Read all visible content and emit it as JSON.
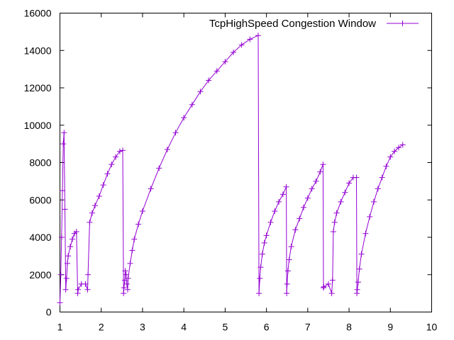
{
  "chart_data": {
    "type": "line",
    "title": "",
    "xlabel": "",
    "ylabel": "",
    "xlim": [
      1,
      10
    ],
    "ylim": [
      0,
      16000
    ],
    "x_ticks": [
      "1",
      "2",
      "3",
      "4",
      "5",
      "6",
      "7",
      "8",
      "9",
      "10"
    ],
    "y_ticks": [
      "0",
      "2000",
      "4000",
      "6000",
      "8000",
      "10000",
      "12000",
      "14000",
      "16000"
    ],
    "grid": false,
    "legend_position": "top-right",
    "marker": "plus",
    "series": [
      {
        "name": "TcpHighSpeed Congestion Window",
        "color": "#9400d3",
        "x": [
          1.0,
          1.02,
          1.04,
          1.06,
          1.08,
          1.1,
          1.12,
          1.14,
          1.16,
          1.18,
          1.2,
          1.25,
          1.3,
          1.35,
          1.4,
          1.43,
          1.44,
          1.52,
          1.62,
          1.67,
          1.68,
          1.72,
          1.78,
          1.85,
          1.95,
          2.05,
          2.15,
          2.25,
          2.35,
          2.45,
          2.52,
          2.54,
          2.55,
          2.57,
          2.58,
          2.6,
          2.62,
          2.64,
          2.65,
          2.7,
          2.75,
          2.8,
          2.9,
          3.0,
          3.2,
          3.4,
          3.6,
          3.8,
          4.0,
          4.2,
          4.4,
          4.6,
          4.8,
          5.0,
          5.2,
          5.4,
          5.6,
          5.8,
          5.82,
          5.84,
          5.86,
          5.9,
          5.95,
          6.0,
          6.1,
          6.2,
          6.3,
          6.4,
          6.48,
          6.49,
          6.5,
          6.52,
          6.55,
          6.6,
          6.7,
          6.8,
          6.9,
          7.0,
          7.1,
          7.2,
          7.3,
          7.37,
          7.38,
          7.39,
          7.5,
          7.58,
          7.6,
          7.62,
          7.65,
          7.7,
          7.8,
          7.9,
          8.0,
          8.1,
          8.18,
          8.19,
          8.2,
          8.22,
          8.25,
          8.3,
          8.4,
          8.5,
          8.6,
          8.7,
          8.8,
          8.9,
          9.0,
          9.1,
          9.2,
          9.3
        ],
        "y": [
          500,
          2000,
          4000,
          6500,
          9000,
          9600,
          5500,
          1200,
          1800,
          2600,
          3000,
          3500,
          3900,
          4200,
          4300,
          1000,
          1200,
          1500,
          1500,
          1200,
          2000,
          4800,
          5300,
          5700,
          6200,
          6800,
          7400,
          7900,
          8300,
          8600,
          8650,
          1000,
          1300,
          1700,
          2200,
          2000,
          1500,
          1200,
          1800,
          2600,
          3300,
          3900,
          4700,
          5400,
          6600,
          7700,
          8700,
          9600,
          10400,
          11100,
          11800,
          12400,
          12900,
          13400,
          13900,
          14300,
          14600,
          14800,
          1000,
          1800,
          2400,
          3100,
          3700,
          4100,
          4800,
          5400,
          5900,
          6300,
          6700,
          1000,
          1500,
          2200,
          2800,
          3500,
          4400,
          5000,
          5600,
          6100,
          6600,
          7000,
          7500,
          7900,
          1300,
          1350,
          1500,
          1000,
          1700,
          4300,
          4800,
          5300,
          5900,
          6400,
          6900,
          7200,
          7200,
          1000,
          1200,
          1600,
          2300,
          3100,
          4200,
          5100,
          5900,
          6600,
          7200,
          7800,
          8300,
          8600,
          8800,
          8950
        ]
      }
    ]
  }
}
